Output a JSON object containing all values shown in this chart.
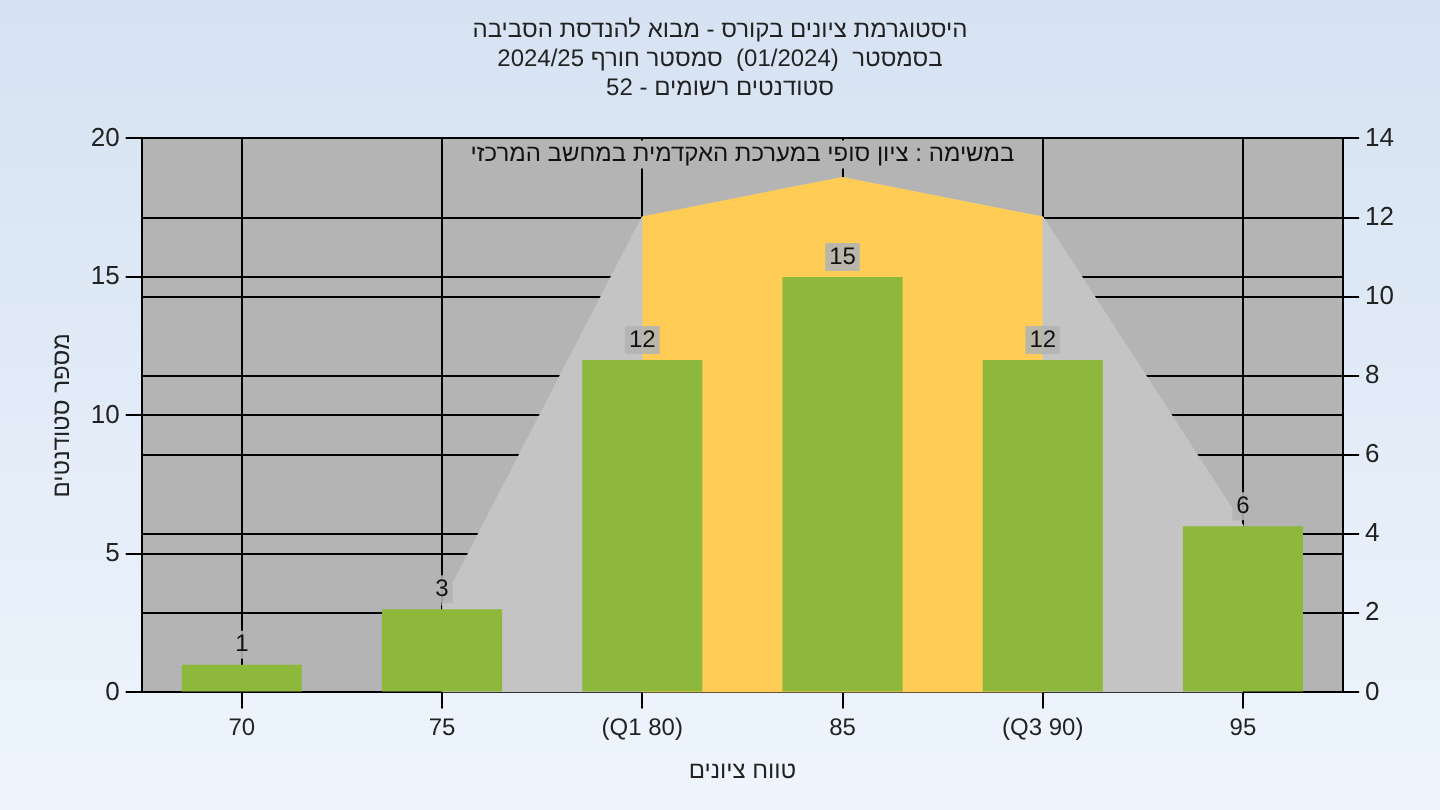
{
  "chart_data": {
    "type": "bar",
    "title": "היסטוגרמת ציונים בקורס - מבוא להנדסת הסביבה",
    "subtitle": "בסמסטר  (01/2024)  סמסטר חורף 2024/25\nסטודנטים רשומים - 52",
    "xlabel": "טווח ציונים",
    "ylabel": "מספר סטודנטים",
    "annotations": [
      "במשימה : ציון סופי במערכת האקדמית במחשב המרכזי"
    ],
    "categories": [
      "70",
      "75",
      "(Q1 80)",
      "85",
      "(Q3 90)",
      "95"
    ],
    "series": [
      {
        "color": "#8db83c",
        "values": [
          1,
          3,
          12,
          15,
          12,
          6
        ],
        "value_labels": [
          "1",
          "3",
          "12",
          "15",
          "12",
          "6"
        ]
      },
      {
        "type": "area",
        "axis": "y2",
        "color": "#c4c4c4",
        "values": [
          null,
          2.2,
          12,
          13,
          12,
          4.2
        ]
      },
      {
        "type": "area",
        "axis": "y2",
        "color": "#ffcc55",
        "values": [
          null,
          null,
          12,
          13,
          12,
          null
        ]
      }
    ],
    "ylim": [
      0,
      20
    ],
    "yticks": [
      0,
      5,
      10,
      15,
      20
    ],
    "y2lim": [
      0,
      14
    ],
    "y2ticks": [
      0,
      2,
      4,
      6,
      8,
      10,
      12,
      14
    ],
    "grid": true,
    "legend": false
  }
}
